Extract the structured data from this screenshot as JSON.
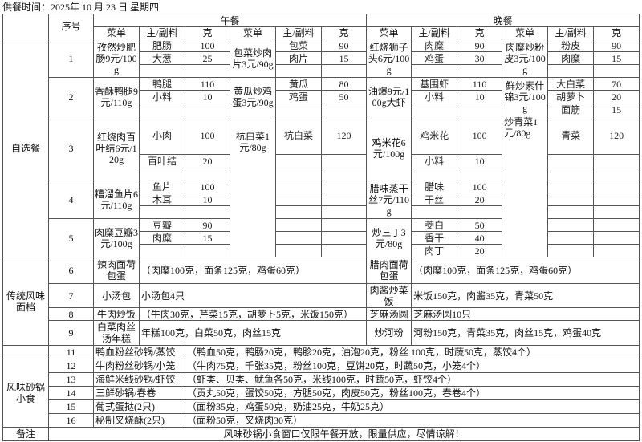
{
  "title": "供餐时间：2025年 10 月 23 日 星期四",
  "headers": {
    "no": "序号",
    "lunch": "午餐",
    "dinner": "晚餐",
    "dish": "菜单",
    "ingredient": "主/副料",
    "grams": "克"
  },
  "self_select": {
    "category": "自选餐",
    "items": [
      {
        "no": "1",
        "lunch": [
          {
            "dish": "孜然炒肥肠9元/100g",
            "ings": [
              [
                "肥肠",
                "100"
              ],
              [
                "大葱",
                "25"
              ]
            ]
          },
          {
            "dish": "包菜炒肉片3元/90g",
            "ings": [
              [
                "包菜",
                "90"
              ],
              [
                "肉片",
                "15"
              ]
            ]
          }
        ],
        "dinner": [
          {
            "dish": "红烧狮子头6元/100g",
            "ings": [
              [
                "肉糜",
                "90"
              ],
              [
                "鸡蛋",
                "30"
              ]
            ]
          },
          {
            "dish": "肉糜炒粉皮3元/100g",
            "ings": [
              [
                "粉皮",
                "90"
              ],
              [
                "肉糜",
                "15"
              ]
            ]
          }
        ]
      },
      {
        "no": "2",
        "lunch": [
          {
            "dish": "香酥鸭腿9元/110g",
            "ings": [
              [
                "鸭腿",
                "110"
              ],
              [
                "小料",
                "10"
              ]
            ]
          },
          {
            "dish": "黄瓜炒鸡蛋3元/90g",
            "ings": [
              [
                "黄瓜",
                "80"
              ],
              [
                "鸡蛋",
                "50"
              ]
            ]
          }
        ],
        "dinner": [
          {
            "dish": "油爆9元/100g大虾",
            "ings": [
              [
                "基围虾",
                "110"
              ],
              [
                "小料",
                "10"
              ]
            ]
          },
          {
            "dish": "鲜炒素什锦3元/100g",
            "ings": [
              [
                "大白菜",
                "70"
              ],
              [
                "胡萝卜",
                "20"
              ],
              [
                "面筋",
                "15"
              ]
            ]
          }
        ]
      },
      {
        "no": "3",
        "lunch": [
          {
            "dish": "红烧肉百叶结6元/120g",
            "ings": [
              [
                "小肉",
                "100"
              ],
              [
                "百叶结",
                "20"
              ]
            ]
          },
          {
            "dish": "杭白菜1元/80g",
            "ings": [
              [
                "杭白菜",
                "120"
              ]
            ]
          }
        ],
        "dinner": [
          {
            "dish": "鸡米花6元/100g",
            "ings": [
              [
                "鸡米花",
                "100"
              ],
              [
                "小料",
                "10"
              ]
            ]
          },
          {
            "dish": "炒青菜1元/80g",
            "ings": [
              [
                "青菜",
                "120"
              ]
            ]
          }
        ]
      },
      {
        "no": "4",
        "lunch": [
          {
            "dish": "糟溜鱼片6元/110g",
            "ings": [
              [
                "鱼片",
                "100"
              ],
              [
                "木耳",
                "10"
              ]
            ]
          },
          {
            "dish": null,
            "ings": []
          }
        ],
        "dinner": [
          {
            "dish": "腊味蒸干丝7元/110g",
            "ings": [
              [
                "腊味",
                "100"
              ],
              [
                "干丝",
                "20"
              ]
            ]
          },
          {
            "dish": null,
            "ings": []
          }
        ]
      },
      {
        "no": "5",
        "lunch": [
          {
            "dish": "肉糜豆瓣3元/100g",
            "ings": [
              [
                "豆瓣",
                "90"
              ],
              [
                "肉糜",
                "15"
              ]
            ]
          },
          {
            "dish": null,
            "ings": []
          }
        ],
        "dinner": [
          {
            "dish": "炒三丁3元/80g",
            "ings": [
              [
                "茭白",
                "50"
              ],
              [
                "香干",
                "40"
              ],
              [
                "肉丁",
                "20"
              ]
            ]
          },
          {
            "dish": null,
            "ings": []
          }
        ]
      }
    ]
  },
  "traditional": {
    "category": "传统风味面档",
    "rows": [
      {
        "no": "6",
        "lunch": {
          "dish": "辣肉面荷包蛋",
          "detail": "（肉糜100克，面条125克，鸡蛋60克）"
        },
        "dinner": {
          "dish": "腊肉面荷包蛋",
          "detail": "（肉糜100克，面条125克，鸡蛋60克）"
        }
      },
      {
        "no": "7",
        "lunch": {
          "dish": "小汤包",
          "detail": "小汤包4只"
        },
        "dinner": {
          "dish": "肉酱炒菜饭",
          "detail": "米饭150克，肉酱35克，青菜50克"
        }
      },
      {
        "no": "8",
        "lunch": {
          "dish": "牛肉炒饭",
          "detail": "（牛肉30克，芹菜15克，胡萝卜5克，米饭150克）"
        },
        "dinner": {
          "dish": "芝麻汤圆",
          "detail": "芝麻汤圆10只"
        }
      },
      {
        "no": "9",
        "lunch": {
          "dish": "白菜肉丝汤年糕",
          "detail": "年糕100克，白菜50克，肉丝15克"
        },
        "dinner": {
          "dish": "炒河粉",
          "detail": "河粉150克，青菜35克，肉丝15克，鸡蛋40克"
        }
      }
    ]
  },
  "casserole": {
    "category": "风味砂锅小食",
    "first_row": {
      "no": "11",
      "dish": "鸭血粉丝砂锅/蒸饺",
      "detail": "（鸭血50克，鸭肠20克，鸭胗20克，油泡20克，粉丝 100克，时蔬50克，蒸饺4个）"
    },
    "rows": [
      {
        "no": "12",
        "dish": "牛肉粉丝砂锅/小笼",
        "detail": "（牛肉75克，千张35克，粉丝100克，豆饼20克，时蔬50克，小笼4个）"
      },
      {
        "no": "13",
        "dish": "海鲜米线砂锅/虾饺",
        "detail": "（虾类、贝类、鱿鱼各50克，米线100克，时蔬50克，虾饺4个）"
      },
      {
        "no": "14",
        "dish": "三鲜砂锅/春卷",
        "detail": "（贡丸50克，蛋饺50克，方腿50克，肉皮50克，粉丝100克，春卷4个）"
      },
      {
        "no": "15",
        "dish": "葡式蛋挞(2只)",
        "detail": "（面粉35克，鸡蛋50克，奶油25克，牛奶25克）"
      },
      {
        "no": "16",
        "dish": "秘制叉烧酥(2只)",
        "detail": "（面粉50克，叉烧肉30克）"
      }
    ]
  },
  "remark": {
    "label": "备注",
    "text": "风味砂锅小食窗口仅限午餐开放，限量供应，尽情谅解！"
  }
}
